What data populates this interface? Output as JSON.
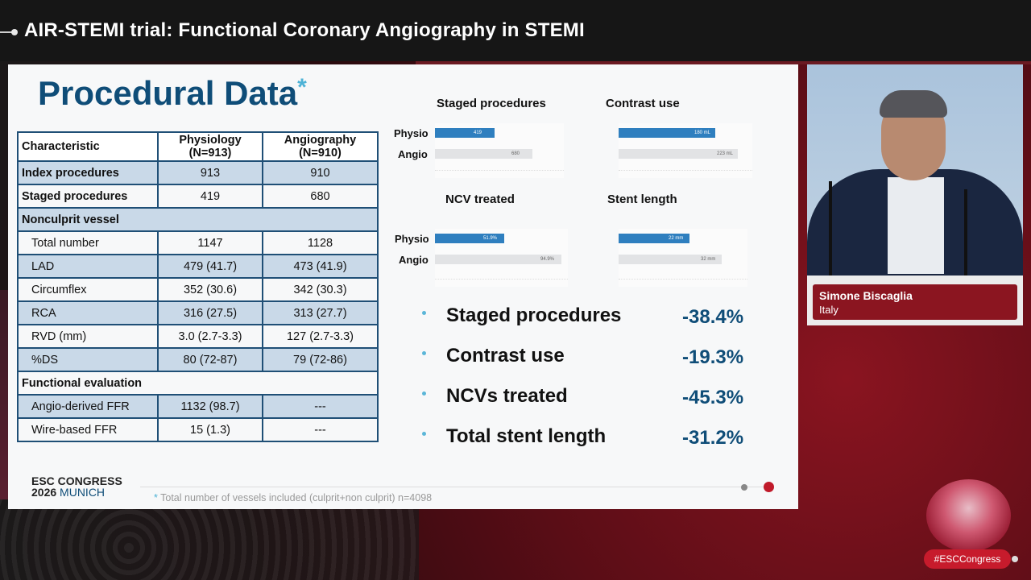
{
  "header": {
    "title": "AIR-STEMI trial: Functional Coronary Angiography in STEMI"
  },
  "slide": {
    "heading": "Procedural Data",
    "heading_asterisk": "*",
    "table": {
      "headers": [
        "Characteristic",
        "Physiology (N=913)",
        "Angiography (N=910)"
      ],
      "rows": [
        {
          "label": "Index procedures",
          "physio": "913",
          "angio": "910"
        },
        {
          "label": "Staged procedures",
          "physio": "419",
          "angio": "680"
        },
        {
          "label": "Nonculprit vessel",
          "physio": "",
          "angio": ""
        },
        {
          "label": "Total number",
          "physio": "1147",
          "angio": "1128"
        },
        {
          "label": "LAD",
          "physio": "479 (41.7)",
          "angio": "473 (41.9)"
        },
        {
          "label": "Circumflex",
          "physio": "352 (30.6)",
          "angio": "342 (30.3)"
        },
        {
          "label": "RCA",
          "physio": "316 (27.5)",
          "angio": "313 (27.7)"
        },
        {
          "label": "RVD (mm)",
          "physio": "3.0 (2.7-3.3)",
          "angio": "127 (2.7-3.3)"
        },
        {
          "label": "%DS",
          "physio": "80 (72-87)",
          "angio": "79 (72-86)"
        },
        {
          "label": "Functional evaluation",
          "physio": "",
          "angio": ""
        },
        {
          "label": "Angio-derived FFR",
          "physio": "1132 (98.7)",
          "angio": "---"
        },
        {
          "label": "Wire-based FFR",
          "physio": "15 (1.3)",
          "angio": "---"
        }
      ]
    },
    "mini_charts": {
      "row_labels": [
        "Physio",
        "Angio"
      ],
      "staged": {
        "title": "Staged procedures",
        "physio": 419,
        "angio": 680,
        "physio_label": "419",
        "angio_label": "680",
        "max": 900
      },
      "contrast": {
        "title": "Contrast use",
        "physio": 180,
        "angio": 223,
        "physio_label": "180 mL",
        "angio_label": "223 mL",
        "max": 250
      },
      "ncv": {
        "title": "NCV treated",
        "physio": 51.9,
        "angio": 94.9,
        "physio_label": "51.9%",
        "angio_label": "94.9%",
        "max": 100
      },
      "stent": {
        "title": "Stent length",
        "physio": 22,
        "angio": 32,
        "physio_label": "22 mm",
        "angio_label": "32 mm",
        "max": 40
      }
    },
    "summary": [
      {
        "label": "Staged procedures",
        "value": "-38.4%"
      },
      {
        "label": "Contrast use",
        "value": "-19.3%"
      },
      {
        "label": "NCVs treated",
        "value": "-45.3%"
      },
      {
        "label": "Total stent length",
        "value": "-31.2%"
      }
    ],
    "footer": {
      "congress_line1": "ESC CONGRESS",
      "congress_year": "2026",
      "congress_city": "MUNICH",
      "footnote_asterisk": "*",
      "footnote": "Total number of vessels included (culprit+non culprit) n=4098"
    }
  },
  "speaker": {
    "name": "Simone Biscaglia",
    "country": "Italy"
  },
  "hashtag": "#ESCCongress",
  "colors": {
    "accent_blue": "#0f4d78",
    "bar_blue": "#2f7fbf",
    "brand_red": "#c71b2c"
  }
}
